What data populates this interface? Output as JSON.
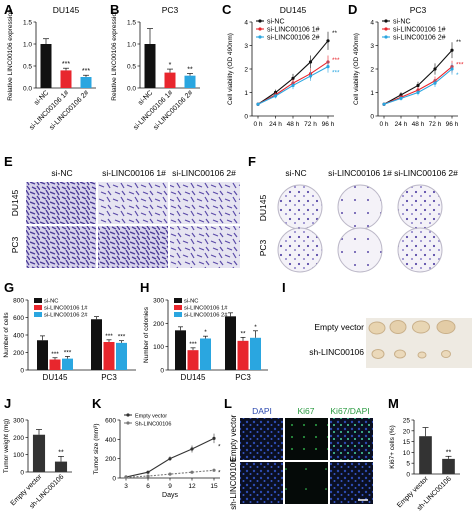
{
  "colors": {
    "black": "#111111",
    "red": "#e8262d",
    "blue": "#2aa6e0",
    "gray_bar": "#333333",
    "stain_bg": "#e6e4f1",
    "stain_dot": "#5a4aa8",
    "colony_plate": "#f4f2f8",
    "fluor_bg": "#0a0f22"
  },
  "panels": {
    "A": "A",
    "B": "B",
    "C": "C",
    "D": "D",
    "E": "E",
    "F": "F",
    "G": "G",
    "H": "H",
    "I": "I",
    "J": "J",
    "K": "K",
    "L": "L",
    "M": "M"
  },
  "groups": {
    "si_nc": "si-NC",
    "si_1": "si-LINC00106 1#",
    "si_2": "si-LINC00106 2#",
    "empty": "Empty vector",
    "sh": "sh-LINC00106"
  },
  "cells": {
    "du145": "DU145",
    "pc3": "PC3"
  },
  "l_headers": {
    "dapi": "DAPI",
    "ki67": "Ki67",
    "ki67_dapi": "Ki67/DAPI"
  },
  "chart_data": [
    {
      "id": "A",
      "type": "bar",
      "title": "DU145",
      "ylabel": "Relative LINC00106  expression",
      "categories": [
        "si-NC",
        "si-LINC00106 1#",
        "si-LINC00106 2#"
      ],
      "values": [
        1.0,
        0.4,
        0.25
      ],
      "errors": [
        0.12,
        0.05,
        0.04
      ],
      "ylim": [
        0,
        1.5
      ],
      "yticks": [
        "0.0",
        "0.5",
        "1.0",
        "1.5"
      ],
      "sig": [
        "",
        "***",
        "***"
      ]
    },
    {
      "id": "B",
      "type": "bar",
      "title": "PC3",
      "ylabel": "Relative LINC00106  expression",
      "categories": [
        "si-NC",
        "si-LINC00106 1#",
        "si-LINC00106 2#"
      ],
      "values": [
        1.0,
        0.35,
        0.28
      ],
      "errors": [
        0.35,
        0.08,
        0.05
      ],
      "ylim": [
        0,
        1.5
      ],
      "yticks": [
        "0.0",
        "0.5",
        "1.0",
        "1.5"
      ],
      "sig": [
        "",
        "*",
        "**"
      ]
    },
    {
      "id": "C",
      "type": "line",
      "title": "DU145",
      "ylabel": "Cell viability (OD 490nm)",
      "x": [
        "0 h",
        "24 h",
        "48 h",
        "72 h",
        "96 h"
      ],
      "ylim": [
        0,
        4
      ],
      "yticks": [
        "0",
        "1",
        "2",
        "3",
        "4"
      ],
      "series": [
        {
          "name": "si-NC",
          "values": [
            0.5,
            1.0,
            1.6,
            2.3,
            3.2
          ]
        },
        {
          "name": "si-LINC00106 1#",
          "values": [
            0.5,
            0.9,
            1.4,
            1.8,
            2.3
          ]
        },
        {
          "name": "si-LINC00106 2#",
          "values": [
            0.5,
            0.85,
            1.3,
            1.7,
            2.1
          ]
        }
      ],
      "sig": [
        "**",
        "***",
        "***"
      ]
    },
    {
      "id": "D",
      "type": "line",
      "title": "PC3",
      "ylabel": "Cell viability (OD 490nm)",
      "x": [
        "0 h",
        "24 h",
        "48 h",
        "72 h",
        "96 h"
      ],
      "ylim": [
        0,
        4
      ],
      "yticks": [
        "0",
        "1",
        "2",
        "3",
        "4"
      ],
      "series": [
        {
          "name": "si-NC",
          "values": [
            0.5,
            0.9,
            1.3,
            2.0,
            2.8
          ]
        },
        {
          "name": "si-LINC00106 1#",
          "values": [
            0.5,
            0.8,
            1.1,
            1.5,
            2.1
          ]
        },
        {
          "name": "si-LINC00106 2#",
          "values": [
            0.5,
            0.75,
            1.0,
            1.4,
            2.0
          ]
        }
      ],
      "sig": [
        "**",
        "***",
        "*"
      ]
    },
    {
      "id": "G",
      "type": "bar",
      "ylabel": "Number of cells",
      "categories": [
        "DU145",
        "PC3"
      ],
      "ylim": [
        0,
        800
      ],
      "yticks": [
        "0",
        "200",
        "400",
        "600",
        "800"
      ],
      "series": [
        {
          "name": "si-NC",
          "values": [
            340,
            580
          ],
          "errors": [
            50,
            30
          ]
        },
        {
          "name": "si-LINC00106  1#",
          "values": [
            120,
            320
          ],
          "errors": [
            20,
            25
          ]
        },
        {
          "name": "si-LINC00106  2#",
          "values": [
            130,
            310
          ],
          "errors": [
            25,
            25
          ]
        }
      ],
      "sig": [
        [
          "",
          "***",
          "***"
        ],
        [
          "",
          "***",
          "***"
        ]
      ]
    },
    {
      "id": "H",
      "type": "bar",
      "ylabel": "Number of colonies",
      "categories": [
        "DU145",
        "PC3"
      ],
      "ylim": [
        0,
        300
      ],
      "yticks": [
        "0",
        "100",
        "200",
        "300"
      ],
      "series": [
        {
          "name": "si-NC",
          "values": [
            170,
            230
          ],
          "errors": [
            15,
            15
          ]
        },
        {
          "name": "si-LINC00106  1#",
          "values": [
            85,
            125
          ],
          "errors": [
            10,
            15
          ]
        },
        {
          "name": "si-LINC00106  2#",
          "values": [
            135,
            138
          ],
          "errors": [
            10,
            30
          ]
        }
      ],
      "sig": [
        [
          "",
          "***",
          "*"
        ],
        [
          "",
          "**",
          "*"
        ]
      ]
    },
    {
      "id": "J",
      "type": "bar",
      "ylabel": "Tumor weight (mg)",
      "categories": [
        "Empty vector",
        "sh-LINC00106"
      ],
      "values": [
        215,
        60
      ],
      "errors": [
        30,
        30
      ],
      "ylim": [
        0,
        300
      ],
      "yticks": [
        "0",
        "100",
        "200",
        "300"
      ],
      "sig": [
        "",
        "**"
      ]
    },
    {
      "id": "K",
      "type": "line",
      "ylabel": "Tumor size (mm³)",
      "xlabel": "Days",
      "x": [
        "3",
        "6",
        "9",
        "12",
        "15"
      ],
      "ylim": [
        0,
        600
      ],
      "yticks": [
        "0",
        "200",
        "400",
        "600"
      ],
      "series": [
        {
          "name": "Empty vector",
          "values": [
            10,
            60,
            200,
            300,
            410
          ]
        },
        {
          "name": "Sh-LINC00106",
          "values": [
            8,
            20,
            40,
            60,
            80
          ]
        }
      ],
      "sig": [
        "*",
        "*"
      ]
    },
    {
      "id": "M",
      "type": "bar",
      "ylabel": "Ki67+ cells (%)",
      "categories": [
        "Empty vector",
        "sh-LINC00106"
      ],
      "values": [
        17.5,
        7
      ],
      "errors": [
        4,
        1.2
      ],
      "ylim": [
        0,
        25
      ],
      "yticks": [
        "0",
        "5",
        "10",
        "15",
        "20",
        "25"
      ],
      "sig": [
        "",
        "**"
      ]
    }
  ]
}
